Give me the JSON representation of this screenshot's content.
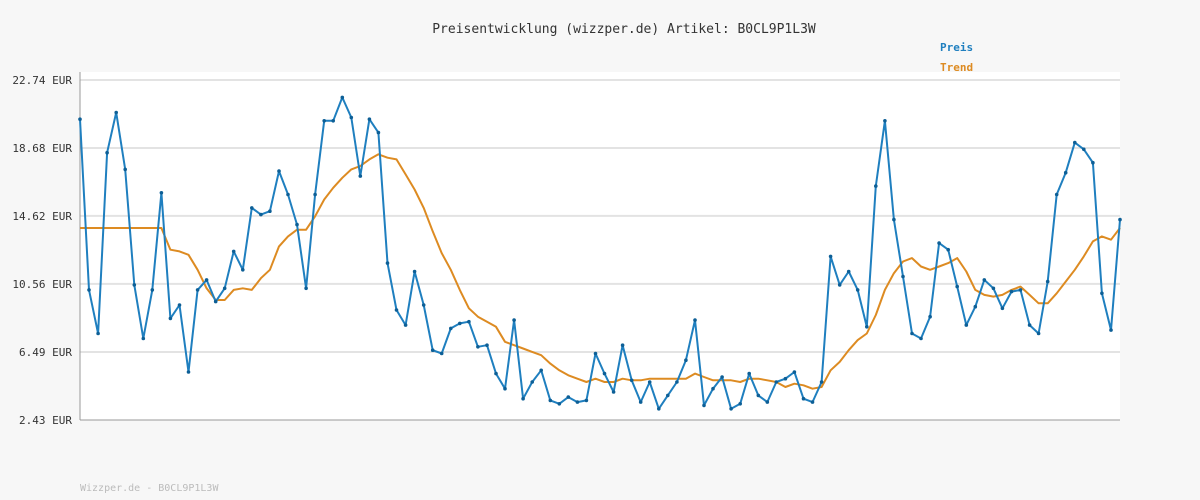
{
  "chart_data": {
    "type": "line",
    "title": "Preisentwicklung (wizzper.de) Artikel: B0CL9P1L3W",
    "footer": "Wizzper.de - B0CL9P1L3W",
    "y_tick_labels": [
      "2.43 EUR",
      "6.49 EUR",
      "10.56 EUR",
      "14.62 EUR",
      "18.68 EUR",
      "22.74 EUR"
    ],
    "y_ticks": [
      2.43,
      6.49,
      10.56,
      14.62,
      18.68,
      22.74
    ],
    "ylim": [
      2.43,
      22.74
    ],
    "grid": true,
    "legend_position": "top-right",
    "colors": {
      "preis": "#1f7fbf",
      "trend": "#dd8b22",
      "grid": "#e3e3e3",
      "axis": "#999999",
      "background": "#f7f7f7",
      "plot_background": "#ffffff"
    },
    "series": [
      {
        "name": "Preis",
        "values": [
          20.4,
          10.2,
          7.6,
          18.4,
          20.8,
          17.4,
          10.5,
          7.3,
          10.2,
          16.0,
          8.5,
          9.3,
          5.3,
          10.2,
          10.8,
          9.5,
          10.3,
          12.5,
          11.4,
          15.1,
          14.7,
          14.9,
          17.3,
          15.9,
          14.1,
          10.3,
          15.9,
          20.3,
          20.3,
          21.7,
          20.5,
          17.0,
          20.4,
          19.6,
          11.8,
          9.0,
          8.1,
          11.3,
          9.3,
          6.6,
          6.4,
          7.9,
          8.2,
          8.3,
          6.8,
          6.9,
          5.2,
          4.3,
          8.4,
          3.7,
          4.7,
          5.4,
          3.6,
          3.4,
          3.8,
          3.5,
          3.6,
          6.4,
          5.2,
          4.1,
          6.9,
          4.8,
          3.5,
          4.7,
          3.1,
          3.9,
          4.7,
          6.0,
          8.4,
          3.3,
          4.3,
          5.0,
          3.1,
          3.4,
          5.2,
          3.9,
          3.5,
          4.7,
          4.9,
          5.3,
          3.7,
          3.5,
          4.7,
          12.2,
          10.5,
          11.3,
          10.2,
          8.0,
          16.4,
          20.3,
          14.4,
          11.0,
          7.6,
          7.3,
          8.6,
          13.0,
          12.6,
          10.4,
          8.1,
          9.2,
          10.8,
          10.3,
          9.1,
          10.1,
          10.2,
          8.1,
          7.6,
          10.7,
          15.9,
          17.2,
          19.0,
          18.6,
          17.8,
          10.0,
          7.8,
          14.4
        ]
      },
      {
        "name": "Trend",
        "values": [
          13.9,
          13.9,
          13.9,
          13.9,
          13.9,
          13.9,
          13.9,
          13.9,
          13.9,
          13.9,
          12.6,
          12.5,
          12.3,
          11.4,
          10.3,
          9.6,
          9.6,
          10.2,
          10.3,
          10.2,
          10.9,
          11.4,
          12.8,
          13.4,
          13.8,
          13.8,
          14.6,
          15.6,
          16.3,
          16.9,
          17.4,
          17.6,
          18.0,
          18.3,
          18.1,
          18.0,
          17.1,
          16.2,
          15.1,
          13.7,
          12.4,
          11.4,
          10.2,
          9.1,
          8.6,
          8.3,
          8.0,
          7.1,
          6.9,
          6.7,
          6.5,
          6.3,
          5.8,
          5.4,
          5.1,
          4.9,
          4.7,
          4.9,
          4.7,
          4.7,
          4.9,
          4.8,
          4.8,
          4.9,
          4.9,
          4.9,
          4.9,
          4.9,
          5.2,
          5.0,
          4.8,
          4.8,
          4.8,
          4.7,
          4.9,
          4.9,
          4.8,
          4.7,
          4.4,
          4.6,
          4.5,
          4.3,
          4.4,
          5.4,
          5.9,
          6.6,
          7.2,
          7.6,
          8.7,
          10.2,
          11.2,
          11.9,
          12.1,
          11.6,
          11.4,
          11.6,
          11.8,
          12.1,
          11.3,
          10.2,
          9.9,
          9.8,
          9.9,
          10.2,
          10.4,
          9.9,
          9.4,
          9.4,
          10.0,
          10.7,
          11.4,
          12.2,
          13.1,
          13.4,
          13.2,
          13.9
        ]
      }
    ]
  }
}
